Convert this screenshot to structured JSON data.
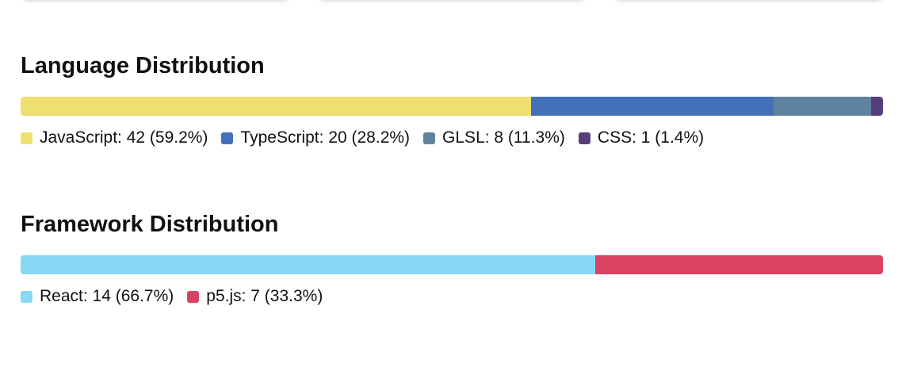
{
  "sections": [
    {
      "title": "Language Distribution",
      "items": [
        {
          "label": "JavaScript: 42 (59.2%)",
          "name": "JavaScript",
          "count": 42,
          "percent": 59.2,
          "color": "#EDE070"
        },
        {
          "label": "TypeScript: 20 (28.2%)",
          "name": "TypeScript",
          "count": 20,
          "percent": 28.2,
          "color": "#4470BB"
        },
        {
          "label": "GLSL: 8 (11.3%)",
          "name": "GLSL",
          "count": 8,
          "percent": 11.3,
          "color": "#5F829E"
        },
        {
          "label": "CSS: 1 (1.4%)",
          "name": "CSS",
          "count": 1,
          "percent": 1.4,
          "color": "#563D7C"
        }
      ]
    },
    {
      "title": "Framework Distribution",
      "items": [
        {
          "label": "React: 14 (66.7%)",
          "name": "React",
          "count": 14,
          "percent": 66.7,
          "color": "#87D8F5"
        },
        {
          "label": "p5.js: 7 (33.3%)",
          "name": "p5.js",
          "count": 7,
          "percent": 33.3,
          "color": "#D94361"
        }
      ]
    }
  ],
  "chart_data": [
    {
      "type": "bar",
      "title": "Language Distribution",
      "categories": [
        "JavaScript",
        "TypeScript",
        "GLSL",
        "CSS"
      ],
      "values": [
        42,
        20,
        8,
        1
      ],
      "percentages": [
        59.2,
        28.2,
        11.3,
        1.4
      ],
      "colors": [
        "#EDE070",
        "#4470BB",
        "#5F829E",
        "#563D7C"
      ],
      "stacked": true,
      "orientation": "horizontal",
      "legend": "bottom-left"
    },
    {
      "type": "bar",
      "title": "Framework Distribution",
      "categories": [
        "React",
        "p5.js"
      ],
      "values": [
        14,
        7
      ],
      "percentages": [
        66.7,
        33.3
      ],
      "colors": [
        "#87D8F5",
        "#D94361"
      ],
      "stacked": true,
      "orientation": "horizontal",
      "legend": "bottom-left"
    }
  ]
}
